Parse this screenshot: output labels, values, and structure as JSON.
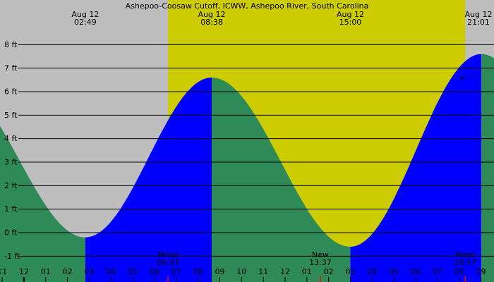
{
  "chart_data": {
    "type": "area",
    "title": "Ashepoo-Coosaw Cutoff, ICWW, Ashepoo River, South Carolina",
    "y_unit": "ft",
    "ylim": [
      -2.1,
      9.9
    ],
    "y_ticks": [
      {
        "value": 8,
        "label": "8 ft"
      },
      {
        "value": 7,
        "label": "7 ft"
      },
      {
        "value": 6,
        "label": "6 ft"
      },
      {
        "value": 5,
        "label": "5 ft"
      },
      {
        "value": 4,
        "label": "4 ft"
      },
      {
        "value": 3,
        "label": "3 ft"
      },
      {
        "value": 2,
        "label": "2 ft"
      },
      {
        "value": 1,
        "label": "1 ft"
      },
      {
        "value": 0,
        "label": "0 ft"
      },
      {
        "value": -1,
        "label": "-1 ft"
      }
    ],
    "x_range_hours": [
      -1.1,
      21.6
    ],
    "x_ticks": [
      {
        "hour": -1,
        "label": "11"
      },
      {
        "hour": 0,
        "label": "12"
      },
      {
        "hour": 1,
        "label": "01"
      },
      {
        "hour": 2,
        "label": "02"
      },
      {
        "hour": 3,
        "label": "03"
      },
      {
        "hour": 4,
        "label": "04"
      },
      {
        "hour": 5,
        "label": "05"
      },
      {
        "hour": 6,
        "label": "06"
      },
      {
        "hour": 7,
        "label": "07"
      },
      {
        "hour": 8,
        "label": "08"
      },
      {
        "hour": 9,
        "label": "09"
      },
      {
        "hour": 10,
        "label": "10"
      },
      {
        "hour": 11,
        "label": "11"
      },
      {
        "hour": 12,
        "label": "12"
      },
      {
        "hour": 13,
        "label": "01"
      },
      {
        "hour": 14,
        "label": "02"
      },
      {
        "hour": 15,
        "label": "03"
      },
      {
        "hour": 16,
        "label": "04"
      },
      {
        "hour": 17,
        "label": "05"
      },
      {
        "hour": 18,
        "label": "06"
      },
      {
        "hour": 19,
        "label": "07"
      },
      {
        "hour": 20,
        "label": "08"
      },
      {
        "hour": 21,
        "label": "09"
      }
    ],
    "daylight_hours": [
      6.62,
      20.28
    ],
    "tide_extremes": [
      {
        "date": "Aug 12",
        "time": "02:49",
        "hour": 2.82,
        "height_ft": -0.2,
        "kind": "low"
      },
      {
        "date": "Aug 12",
        "time": "08:38",
        "hour": 8.63,
        "height_ft": 6.6,
        "kind": "high"
      },
      {
        "date": "Aug 12",
        "time": "15:00",
        "hour": 15.0,
        "height_ft": -0.6,
        "kind": "low"
      },
      {
        "date": "Aug 12",
        "time": "21:01",
        "hour": 21.02,
        "height_ft": 7.6,
        "kind": "high"
      }
    ],
    "prior_high": {
      "hour": -3.2,
      "height_ft": 6.3
    },
    "events": [
      {
        "label": "Mrise",
        "time": "06:37",
        "hour": 6.62,
        "marker_color": "#ff0000"
      },
      {
        "label": "New",
        "time": "13:37",
        "hour": 13.62,
        "marker_color": "#ff0000"
      },
      {
        "label": "Mset",
        "time": "20:17",
        "hour": 20.28,
        "marker_color": "#ff0000"
      }
    ],
    "current_marker": {
      "hour": 20.15,
      "height_ft": 6.6,
      "symbol": "+"
    },
    "colors": {
      "night": "#bebebe",
      "day": "#cccc00",
      "falling": "#2e8b57",
      "rising": "#0000ff",
      "grid": "#000000"
    }
  }
}
